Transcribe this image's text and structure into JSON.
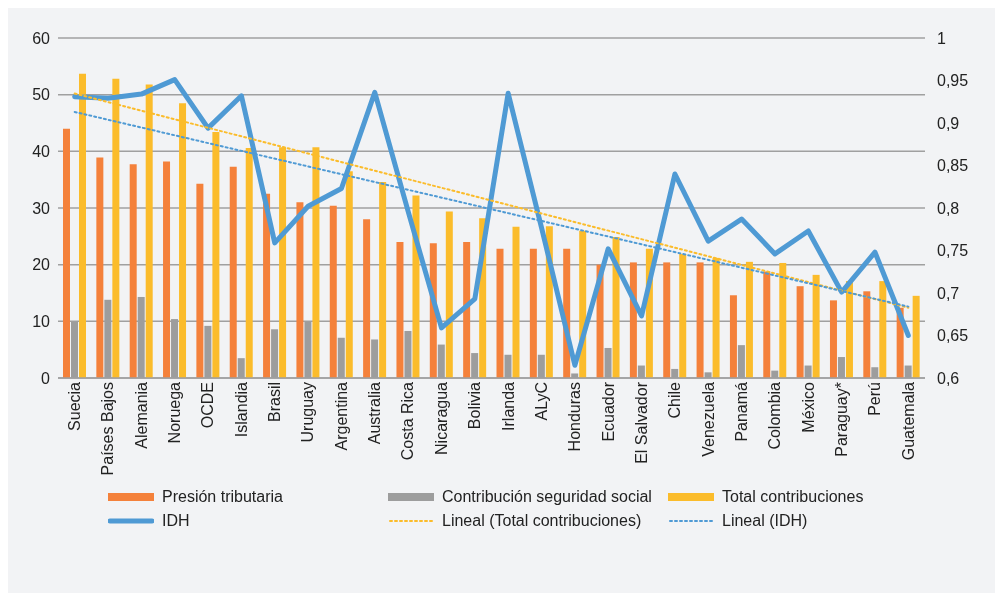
{
  "chart_data": {
    "type": "bar",
    "categories": [
      "Suecia",
      "Países Bajos",
      "Alemania",
      "Noruega",
      "OCDE",
      "Islandia",
      "Brasil",
      "Uruguay",
      "Argentina",
      "Australia",
      "Costa Rica",
      "Nicaragua",
      "Bolivia",
      "Irlanda",
      "ALyC",
      "Honduras",
      "Ecuador",
      "El Salvador",
      "Chile",
      "Venezuela",
      "Panamá",
      "Colombia",
      "México",
      "Paraguay*",
      "Perú",
      "Guatemala"
    ],
    "series": [
      {
        "name": "Presión tributaria",
        "color": "#f4813b",
        "values": [
          44,
          38.9,
          37.7,
          38.2,
          34.3,
          37.3,
          32.5,
          31,
          30.4,
          28,
          24,
          23.8,
          24,
          22.8,
          22.8,
          22.8,
          20,
          20.4,
          20.4,
          20.4,
          14.6,
          18.8,
          16.2,
          13.7,
          15.3,
          12.4
        ]
      },
      {
        "name": "Contribución seguridad social",
        "color": "#9d9d9d",
        "values": [
          9.9,
          13.8,
          14.3,
          10.4,
          9.2,
          3.5,
          8.6,
          9.9,
          7.1,
          6.8,
          8.3,
          5.9,
          4.4,
          4.1,
          4.1,
          0.8,
          5.3,
          2.2,
          1.6,
          1,
          5.8,
          1.3,
          2.2,
          3.7,
          1.9,
          2.2
        ]
      },
      {
        "name": "Total contribuciones",
        "color": "#fbbc2b",
        "values": [
          53.7,
          52.8,
          51.8,
          48.5,
          43.4,
          40.6,
          40.7,
          40.7,
          36.5,
          34.6,
          32.2,
          29.4,
          28.2,
          26.7,
          26.8,
          26,
          24.9,
          22.8,
          21.9,
          21.2,
          20.5,
          20.3,
          18.2,
          17.1,
          17.1,
          14.5
        ]
      },
      {
        "name": "IDH",
        "type": "line",
        "axis": "y2",
        "color": "#4f9ad4",
        "line_style": "solid",
        "values": [
          0.931,
          0.929,
          0.934,
          0.951,
          0.894,
          0.932,
          0.759,
          0.802,
          0.823,
          0.936,
          0.796,
          0.659,
          0.693,
          0.935,
          0.777,
          0.615,
          0.752,
          0.673,
          0.84,
          0.761,
          0.787,
          0.746,
          0.773,
          0.701,
          0.748,
          0.65
        ]
      },
      {
        "name": "Lineal (Total contribuciones)",
        "type": "line",
        "color": "#fbbc2b",
        "line_style": "dotted",
        "x": [
          "Suecia",
          "Guatemala"
        ],
        "values": [
          50.2,
          12.4
        ]
      },
      {
        "name": "Lineal (IDH)",
        "type": "line",
        "axis": "y2",
        "color": "#4f9ad4",
        "line_style": "dotted",
        "x": [
          "Suecia",
          "Guatemala"
        ],
        "values": [
          0.913,
          0.684
        ]
      }
    ],
    "ylim": [
      0,
      60
    ],
    "yticks": [
      0,
      10,
      20,
      30,
      40,
      50,
      60
    ],
    "y2lim": [
      0.6,
      1
    ],
    "y2ticks": [
      {
        "value": 0.6,
        "label": "0,6"
      },
      {
        "value": 0.65,
        "label": "0,65"
      },
      {
        "value": 0.7,
        "label": "0,7"
      },
      {
        "value": 0.75,
        "label": "0,75"
      },
      {
        "value": 0.8,
        "label": "0,8"
      },
      {
        "value": 0.85,
        "label": "0,85"
      },
      {
        "value": 0.9,
        "label": "0,9"
      },
      {
        "value": 0.95,
        "label": "0,95"
      },
      {
        "value": 1,
        "label": "1"
      }
    ],
    "grid": "y",
    "legend": "bottom",
    "marker": "none"
  }
}
